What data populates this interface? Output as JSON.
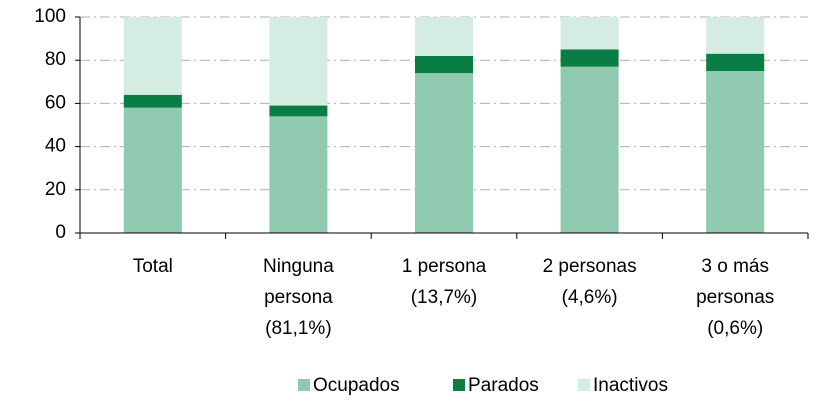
{
  "chart_data": {
    "type": "stacked_bar",
    "categories": [
      [
        "Total"
      ],
      [
        "Ninguna",
        "persona",
        "(81,1%)"
      ],
      [
        "1 persona",
        "(13,7%)"
      ],
      [
        "2 personas",
        "(4,6%)"
      ],
      [
        "3 o más",
        "personas",
        "(0,6%)"
      ]
    ],
    "series": [
      {
        "name": "Ocupados",
        "color": "#8fcab0",
        "values": [
          58,
          54,
          74,
          77,
          75
        ]
      },
      {
        "name": "Parados",
        "color": "#0a7d45",
        "values": [
          6,
          5,
          8,
          8,
          8
        ]
      },
      {
        "name": "Inactivos",
        "color": "#d5ece2",
        "values": [
          36,
          41,
          18,
          15,
          17
        ]
      }
    ],
    "ylim": [
      0,
      100
    ],
    "yticks": [
      0,
      20,
      40,
      60,
      80,
      100
    ],
    "grid": true,
    "legend": "bottom"
  }
}
